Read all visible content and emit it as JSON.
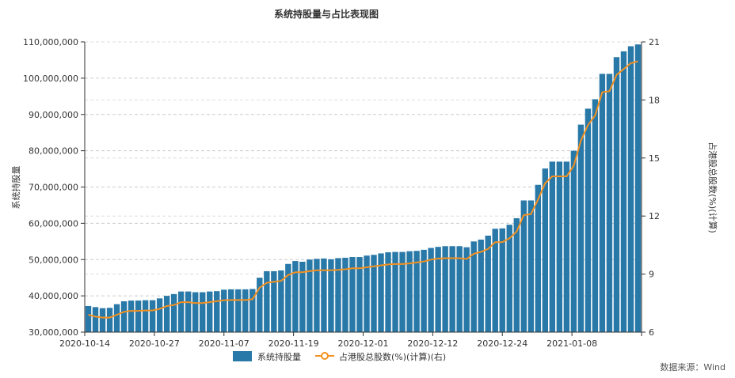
{
  "chart_data": {
    "type": "bar",
    "title": "系统持股量与占比表现图",
    "ylabel": "系统持股量",
    "ylabel_right": "占港股总股数(%)(计算)",
    "ylim": [
      30000000,
      110000000
    ],
    "ylim_right": [
      6,
      21
    ],
    "y_ticks": [
      "110,000,000",
      "100,000,000",
      "90,000,000",
      "80,000,000",
      "70,000,000",
      "60,000,000",
      "50,000,000",
      "40,000,000",
      "30,000,000"
    ],
    "y_ticks_right": [
      "21",
      "18",
      "15",
      "12",
      "9",
      "6"
    ],
    "x_tick_labels": [
      "2020-10-14",
      "2020-10-27",
      "2020-11-07",
      "2020-11-19",
      "2020-12-01",
      "2020-12-12",
      "2020-12-24",
      "2021-01-08"
    ],
    "legend_placement": "bottom-center",
    "grid": true,
    "colors": {
      "bar": "#2878a8",
      "line": "#f59120"
    },
    "series": [
      {
        "name": "系统持股量",
        "type": "bar",
        "values": [
          37200000,
          36900000,
          36600000,
          36700000,
          37700000,
          38500000,
          38700000,
          38700000,
          38800000,
          38800000,
          39300000,
          40000000,
          40500000,
          41200000,
          41200000,
          41000000,
          41000000,
          41200000,
          41300000,
          41700000,
          41800000,
          41800000,
          41800000,
          41900000,
          45000000,
          46800000,
          46800000,
          47000000,
          48800000,
          49600000,
          49400000,
          50000000,
          50200000,
          50300000,
          50100000,
          50400000,
          50500000,
          50700000,
          50700000,
          51100000,
          51300000,
          51700000,
          52000000,
          52100000,
          52100000,
          52300000,
          52400000,
          52700000,
          53200000,
          53500000,
          53700000,
          53700000,
          53700000,
          53400000,
          55000000,
          55500000,
          56600000,
          58500000,
          58600000,
          59600000,
          61400000,
          66300000,
          66300000,
          70600000,
          75100000,
          77000000,
          77000000,
          77000000,
          80000000,
          87200000,
          91600000,
          94200000,
          101200000,
          101200000,
          105800000,
          107400000,
          108800000,
          109300000
        ]
      },
      {
        "name": "占港股总股数(%)(计算)(右)",
        "type": "line",
        "values": [
          6.9,
          6.8,
          6.75,
          6.75,
          6.9,
          7.05,
          7.1,
          7.1,
          7.12,
          7.12,
          7.2,
          7.35,
          7.4,
          7.55,
          7.55,
          7.5,
          7.5,
          7.55,
          7.6,
          7.65,
          7.66,
          7.66,
          7.66,
          7.7,
          8.3,
          8.55,
          8.6,
          8.65,
          8.95,
          9.1,
          9.1,
          9.15,
          9.2,
          9.2,
          9.2,
          9.22,
          9.25,
          9.3,
          9.3,
          9.35,
          9.4,
          9.45,
          9.5,
          9.52,
          9.52,
          9.55,
          9.6,
          9.65,
          9.75,
          9.8,
          9.82,
          9.82,
          9.82,
          9.78,
          10.05,
          10.15,
          10.3,
          10.65,
          10.65,
          10.85,
          11.2,
          12.05,
          12.1,
          12.85,
          13.7,
          14.05,
          14.05,
          14.05,
          14.6,
          15.9,
          16.7,
          17.2,
          18.4,
          18.45,
          19.3,
          19.6,
          19.9,
          20.0
        ]
      }
    ]
  },
  "legend": {
    "bar_label": "系统持股量",
    "line_label": "占港股总股数(%)(计算)(右)"
  },
  "source_text": "数据来源：Wind"
}
